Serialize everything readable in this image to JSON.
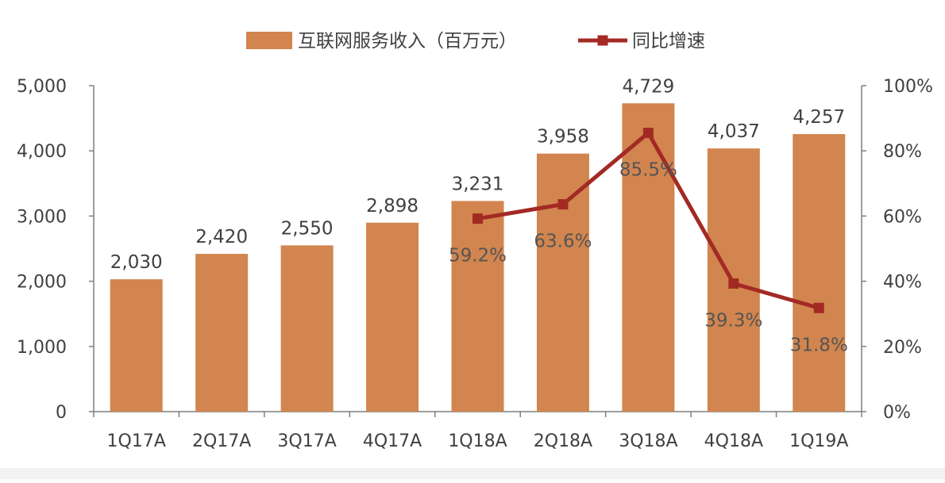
{
  "chart_data": {
    "type": "bar",
    "categories": [
      "1Q17A",
      "2Q17A",
      "3Q17A",
      "4Q17A",
      "1Q18A",
      "2Q18A",
      "3Q18A",
      "4Q18A",
      "1Q19A"
    ],
    "series": [
      {
        "name": "互联网服务收入（百万元）",
        "type": "bar",
        "axis": "left",
        "color": "#D2854E",
        "values": [
          2030,
          2420,
          2550,
          2898,
          3231,
          3958,
          4729,
          4037,
          4257
        ],
        "labels": [
          "2,030",
          "2,420",
          "2,550",
          "2,898",
          "3,231",
          "3,958",
          "4,729",
          "4,037",
          "4,257"
        ]
      },
      {
        "name": "同比增速",
        "type": "line",
        "axis": "right",
        "color": "#A32A24",
        "values": [
          null,
          null,
          null,
          null,
          59.2,
          63.6,
          85.5,
          39.3,
          31.8
        ],
        "labels": [
          null,
          null,
          null,
          null,
          "59.2%",
          "63.6%",
          "85.5%",
          "39.3%",
          "31.8%"
        ]
      }
    ],
    "left_axis": {
      "ylim": [
        0,
        5000
      ],
      "ticks": [
        0,
        1000,
        2000,
        3000,
        4000,
        5000
      ],
      "tick_labels": [
        "0",
        "1,000",
        "2,000",
        "3,000",
        "4,000",
        "5,000"
      ]
    },
    "right_axis": {
      "ylim": [
        0,
        100
      ],
      "ticks": [
        0,
        20,
        40,
        60,
        80,
        100
      ],
      "tick_labels": [
        "0%",
        "20%",
        "40%",
        "60%",
        "80%",
        "100%"
      ]
    },
    "legend": {
      "position": "top"
    },
    "grid": false
  }
}
